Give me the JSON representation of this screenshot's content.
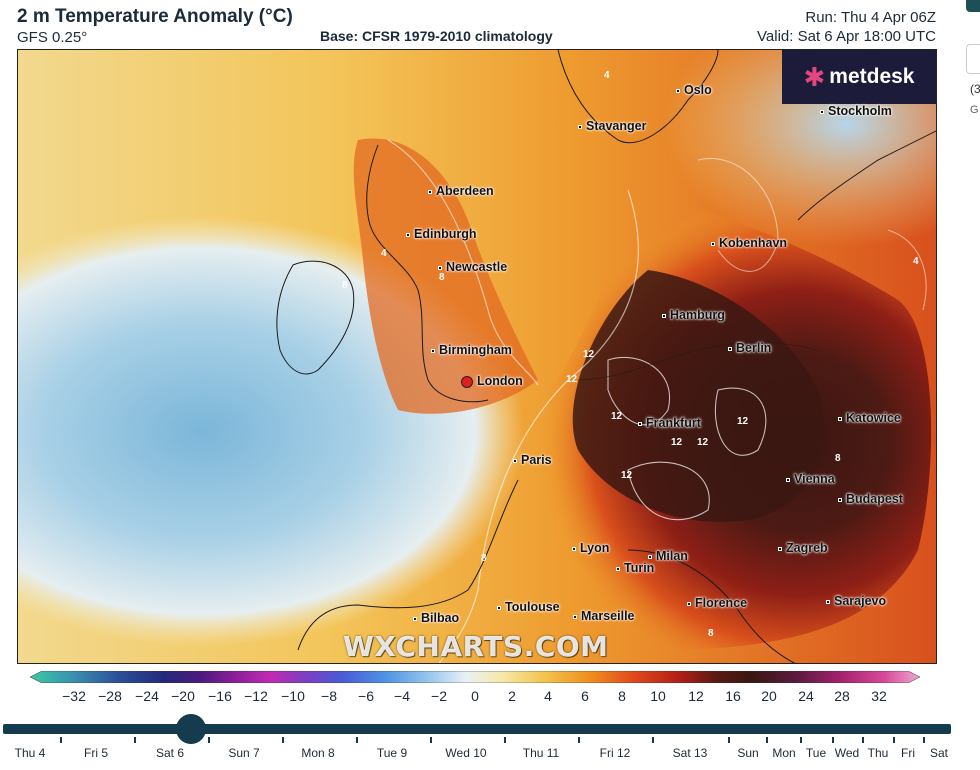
{
  "header": {
    "title": "2 m Temperature Anomaly (°C)",
    "model": "GFS 0.25°",
    "base": "Base: CFSR 1979-2010 climatology",
    "run": "Run: Thu 4 Apr 06Z",
    "valid": "Valid: Sat 6 Apr 18:00 UTC"
  },
  "brand": {
    "logo_text": "metdesk",
    "logo_icon": "metdesk-starburst-icon",
    "watermark": "WXCHARTS.COM"
  },
  "cities": [
    {
      "name": "Oslo"
    },
    {
      "name": "Stavanger"
    },
    {
      "name": "Stockholm"
    },
    {
      "name": "Aberdeen"
    },
    {
      "name": "Edinburgh"
    },
    {
      "name": "Newcastle"
    },
    {
      "name": "Kobenhavn"
    },
    {
      "name": "Hamburg"
    },
    {
      "name": "Berlin"
    },
    {
      "name": "Birmingham"
    },
    {
      "name": "London"
    },
    {
      "name": "Katowice"
    },
    {
      "name": "Frankfurt"
    },
    {
      "name": "Paris"
    },
    {
      "name": "Vienna"
    },
    {
      "name": "Budapest"
    },
    {
      "name": "Zagreb"
    },
    {
      "name": "Lyon"
    },
    {
      "name": "Milan"
    },
    {
      "name": "Turin"
    },
    {
      "name": "Toulouse"
    },
    {
      "name": "Marseille"
    },
    {
      "name": "Florence"
    },
    {
      "name": "Sarajevo"
    },
    {
      "name": "Bilbao"
    }
  ],
  "contour_labels": [
    "4",
    "4",
    "8",
    "8",
    "12",
    "12",
    "12",
    "12",
    "12",
    "12",
    "12",
    "8",
    "4",
    "8",
    "8"
  ],
  "colorbar": {
    "ticks": [
      "−32",
      "−28",
      "−24",
      "−20",
      "−16",
      "−12",
      "−10",
      "−8",
      "−6",
      "−4",
      "−2",
      "0",
      "2",
      "4",
      "6",
      "8",
      "10",
      "12",
      "16",
      "20",
      "24",
      "28",
      "32"
    ],
    "colors": [
      "#3ac9a4",
      "#3a8fb0",
      "#2b4f96",
      "#232a7a",
      "#4a1b7c",
      "#8a1f9a",
      "#c02bb3",
      "#7b3fc4",
      "#4a5bd6",
      "#4f93e3",
      "#9ac8ee",
      "#e9f1f6",
      "#f6e9a8",
      "#f3c24a",
      "#ee8d1e",
      "#e0481b",
      "#b11f17",
      "#5c1a13",
      "#3a1712",
      "#5a1a3f",
      "#a3216e",
      "#d64a9a",
      "#f2a7d2"
    ]
  },
  "timeline": {
    "selected": "Sat 6",
    "days": [
      "Thu 4",
      "Fri 5",
      "Sat 6",
      "Sun 7",
      "Mon 8",
      "Tue 9",
      "Wed 10",
      "Thu 11",
      "Fri 12",
      "Sat 13",
      "Sun",
      "Mon",
      "Tue",
      "Wed",
      "Thu",
      "Fri",
      "Sat"
    ]
  },
  "side": {
    "text1": "(3",
    "text2": "G"
  }
}
